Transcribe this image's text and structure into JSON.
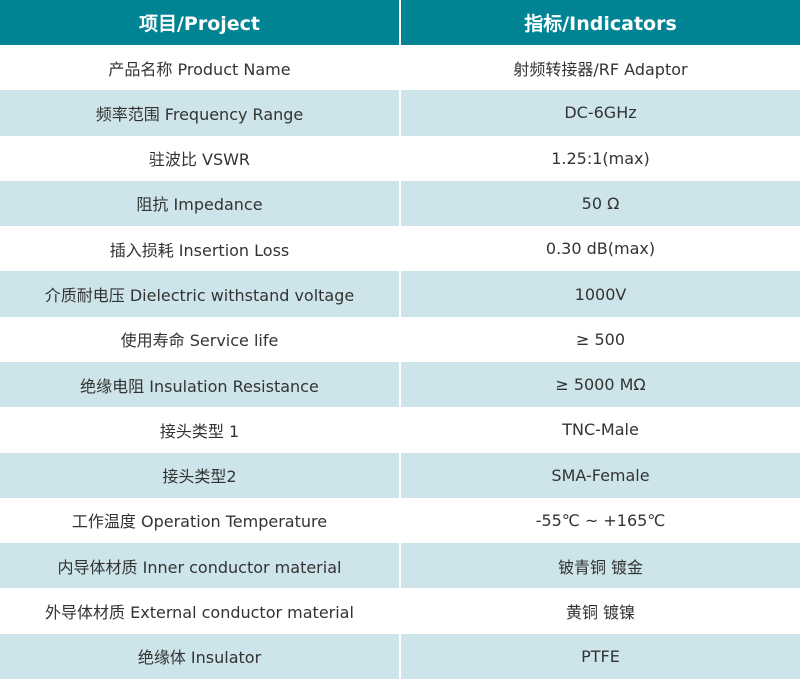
{
  "colors": {
    "header": "#008493",
    "alt_row": "#cde5ea"
  },
  "header": {
    "project": "项目/Project",
    "indicators": "指标/Indicators"
  },
  "rows": [
    {
      "project": "产品名称 Product Name",
      "value": "射频转接器/RF Adaptor"
    },
    {
      "project": "频率范围 Frequency Range",
      "value": "DC-6GHz"
    },
    {
      "project": "驻波比 VSWR",
      "value": "1.25:1(max)"
    },
    {
      "project": "阻抗 Impedance",
      "value": "50 Ω"
    },
    {
      "project": "插入损耗 Insertion Loss",
      "value": "0.30 dB(max)"
    },
    {
      "project": "介质耐电压 Dielectric withstand voltage",
      "value": "1000V"
    },
    {
      "project": "使用寿命 Service life",
      "value": "≥ 500"
    },
    {
      "project": "绝缘电阻 Insulation Resistance",
      "value": "≥ 5000 MΩ"
    },
    {
      "project": "接头类型 1",
      "value": "TNC-Male"
    },
    {
      "project": "接头类型2",
      "value": "SMA-Female"
    },
    {
      "project": "工作温度 Operation Temperature",
      "value": "-55℃ ~ +165℃"
    },
    {
      "project": "内导体材质 Inner conductor material",
      "value": "铍青铜 镀金"
    },
    {
      "project": "外导体材质 External conductor material",
      "value": "黄铜 镀镍"
    },
    {
      "project": "绝缘体 Insulator",
      "value": "PTFE"
    }
  ]
}
